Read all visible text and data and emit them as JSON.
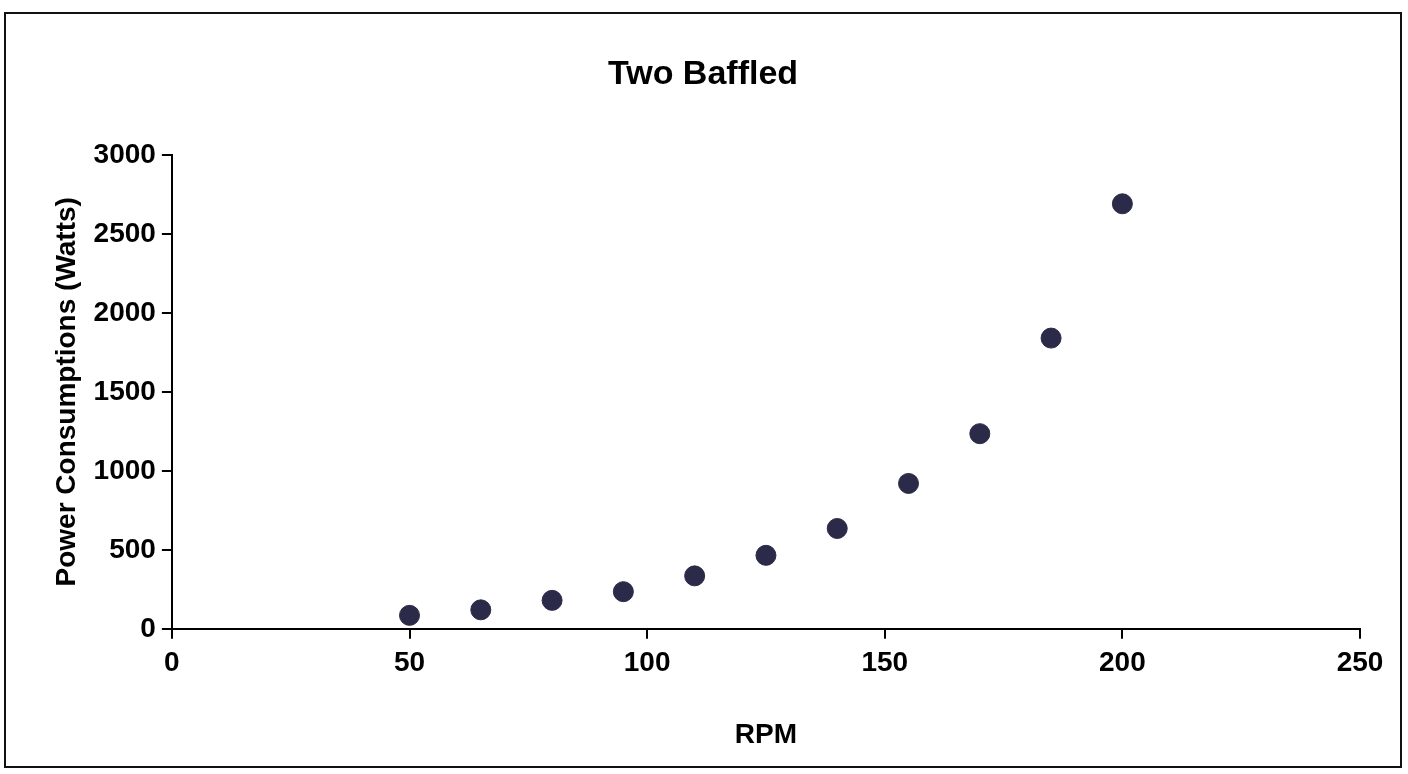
{
  "chart_data": {
    "type": "scatter",
    "title": "Two Baffled",
    "xlabel": "RPM",
    "ylabel": "Power Consumptions (Watts)",
    "x": [
      50,
      65,
      80,
      95,
      110,
      125,
      140,
      155,
      170,
      185,
      200
    ],
    "series": [
      {
        "color": "#2b2a48",
        "values": [
          85,
          120,
          180,
          235,
          335,
          465,
          635,
          920,
          1235,
          1840,
          2690
        ]
      }
    ],
    "xlim": [
      0,
      250
    ],
    "xticks": [
      0,
      50,
      100,
      150,
      200,
      250
    ],
    "ylim": [
      0,
      3000
    ],
    "yticks": [
      0,
      500,
      1000,
      1500,
      2000,
      2500,
      3000
    ],
    "grid": false,
    "legend": false,
    "marker": "circle"
  }
}
